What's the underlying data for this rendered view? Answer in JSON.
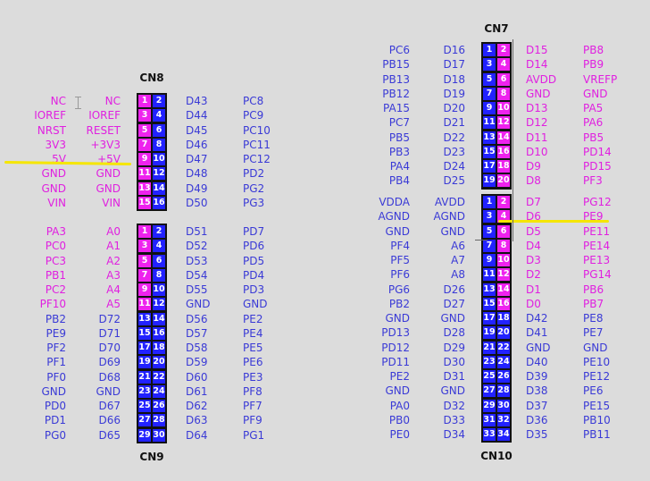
{
  "colors": {
    "magenta": "#e020e0",
    "blue": "#3a3ad6",
    "pin_magenta": "#ee22ee",
    "pin_blue": "#2222ff",
    "highlight": "#f5e600",
    "background": "#dcdcdc"
  },
  "connectors": [
    {
      "id": "cn8",
      "title": "CN8",
      "title_pos": "top",
      "rows": [
        [
          "NC",
          "NC",
          1,
          2,
          "D43",
          "PC8",
          "m",
          "b",
          "m",
          "b"
        ],
        [
          "IOREF",
          "IOREF",
          3,
          4,
          "D44",
          "PC9",
          "m",
          "b",
          "m",
          "b"
        ],
        [
          "NRST",
          "RESET",
          5,
          6,
          "D45",
          "PC10",
          "m",
          "b",
          "m",
          "b"
        ],
        [
          "3V3",
          "+3V3",
          7,
          8,
          "D46",
          "PC11",
          "m",
          "b",
          "m",
          "b"
        ],
        [
          "5V",
          "+5V",
          9,
          10,
          "D47",
          "PC12",
          "m",
          "b",
          "m",
          "b"
        ],
        [
          "GND",
          "GND",
          11,
          12,
          "D48",
          "PD2",
          "m",
          "b",
          "m",
          "b"
        ],
        [
          "GND",
          "GND",
          13,
          14,
          "D49",
          "PG2",
          "m",
          "b",
          "m",
          "b"
        ],
        [
          "VIN",
          "VIN",
          15,
          16,
          "D50",
          "PG3",
          "m",
          "b",
          "m",
          "b"
        ]
      ]
    },
    {
      "id": "cn9",
      "title": "CN9",
      "title_pos": "bottom",
      "rows": [
        [
          "PA3",
          "A0",
          1,
          2,
          "D51",
          "PD7",
          "m",
          "b",
          "m",
          "b"
        ],
        [
          "PC0",
          "A1",
          3,
          4,
          "D52",
          "PD6",
          "m",
          "b",
          "m",
          "b"
        ],
        [
          "PC3",
          "A2",
          5,
          6,
          "D53",
          "PD5",
          "m",
          "b",
          "m",
          "b"
        ],
        [
          "PB1",
          "A3",
          7,
          8,
          "D54",
          "PD4",
          "m",
          "b",
          "m",
          "b"
        ],
        [
          "PC2",
          "A4",
          9,
          10,
          "D55",
          "PD3",
          "m",
          "b",
          "m",
          "b"
        ],
        [
          "PF10",
          "A5",
          11,
          12,
          "GND",
          "GND",
          "m",
          "b",
          "m",
          "b"
        ],
        [
          "PB2",
          "D72",
          13,
          14,
          "D56",
          "PE2",
          "b",
          "b",
          "b",
          "b"
        ],
        [
          "PE9",
          "D71",
          15,
          16,
          "D57",
          "PE4",
          "b",
          "b",
          "b",
          "b"
        ],
        [
          "PF2",
          "D70",
          17,
          18,
          "D58",
          "PE5",
          "b",
          "b",
          "b",
          "b"
        ],
        [
          "PF1",
          "D69",
          19,
          20,
          "D59",
          "PE6",
          "b",
          "b",
          "b",
          "b"
        ],
        [
          "PF0",
          "D68",
          21,
          22,
          "D60",
          "PE3",
          "b",
          "b",
          "b",
          "b"
        ],
        [
          "GND",
          "GND",
          23,
          24,
          "D61",
          "PF8",
          "b",
          "b",
          "b",
          "b"
        ],
        [
          "PD0",
          "D67",
          25,
          26,
          "D62",
          "PF7",
          "b",
          "b",
          "b",
          "b"
        ],
        [
          "PD1",
          "D66",
          27,
          28,
          "D63",
          "PF9",
          "b",
          "b",
          "b",
          "b"
        ],
        [
          "PG0",
          "D65",
          29,
          30,
          "D64",
          "PG1",
          "b",
          "b",
          "b",
          "b"
        ]
      ]
    },
    {
      "id": "cn7",
      "title": "CN7",
      "title_pos": "top",
      "rows": [
        [
          "PC6",
          "D16",
          1,
          2,
          "D15",
          "PB8",
          "b",
          "m",
          "b",
          "m"
        ],
        [
          "PB15",
          "D17",
          3,
          4,
          "D14",
          "PB9",
          "b",
          "m",
          "b",
          "m"
        ],
        [
          "PB13",
          "D18",
          5,
          6,
          "AVDD",
          "VREFP",
          "b",
          "m",
          "b",
          "m"
        ],
        [
          "PB12",
          "D19",
          7,
          8,
          "GND",
          "GND",
          "b",
          "m",
          "b",
          "m"
        ],
        [
          "PA15",
          "D20",
          9,
          10,
          "D13",
          "PA5",
          "b",
          "m",
          "b",
          "m"
        ],
        [
          "PC7",
          "D21",
          11,
          12,
          "D12",
          "PA6",
          "b",
          "m",
          "b",
          "m"
        ],
        [
          "PB5",
          "D22",
          13,
          14,
          "D11",
          "PB5",
          "b",
          "m",
          "b",
          "m"
        ],
        [
          "PB3",
          "D23",
          15,
          16,
          "D10",
          "PD14",
          "b",
          "m",
          "b",
          "m"
        ],
        [
          "PA4",
          "D24",
          17,
          18,
          "D9",
          "PD15",
          "b",
          "m",
          "b",
          "m"
        ],
        [
          "PB4",
          "D25",
          19,
          20,
          "D8",
          "PF3",
          "b",
          "m",
          "b",
          "m"
        ]
      ]
    },
    {
      "id": "cn10",
      "title": "CN10",
      "title_pos": "bottom",
      "rows": [
        [
          "VDDA",
          "AVDD",
          1,
          2,
          "D7",
          "PG12",
          "b",
          "m",
          "b",
          "m"
        ],
        [
          "AGND",
          "AGND",
          3,
          4,
          "D6",
          "PE9",
          "b",
          "m",
          "b",
          "m"
        ],
        [
          "GND",
          "GND",
          5,
          6,
          "D5",
          "PE11",
          "b",
          "m",
          "b",
          "m"
        ],
        [
          "PF4",
          "A6",
          7,
          8,
          "D4",
          "PE14",
          "b",
          "m",
          "b",
          "m"
        ],
        [
          "PF5",
          "A7",
          9,
          10,
          "D3",
          "PE13",
          "b",
          "m",
          "b",
          "m"
        ],
        [
          "PF6",
          "A8",
          11,
          12,
          "D2",
          "PG14",
          "b",
          "m",
          "b",
          "m"
        ],
        [
          "PG6",
          "D26",
          13,
          14,
          "D1",
          "PB6",
          "b",
          "m",
          "b",
          "m"
        ],
        [
          "PB2",
          "D27",
          15,
          16,
          "D0",
          "PB7",
          "b",
          "m",
          "b",
          "m"
        ],
        [
          "GND",
          "GND",
          17,
          18,
          "D42",
          "PE8",
          "b",
          "b",
          "b",
          "b"
        ],
        [
          "PD13",
          "D28",
          19,
          20,
          "D41",
          "PE7",
          "b",
          "b",
          "b",
          "b"
        ],
        [
          "PD12",
          "D29",
          21,
          22,
          "GND",
          "GND",
          "b",
          "b",
          "b",
          "b"
        ],
        [
          "PD11",
          "D30",
          23,
          24,
          "D40",
          "PE10",
          "b",
          "b",
          "b",
          "b"
        ],
        [
          "PE2",
          "D31",
          25,
          26,
          "D39",
          "PE12",
          "b",
          "b",
          "b",
          "b"
        ],
        [
          "GND",
          "GND",
          27,
          28,
          "D38",
          "PE6",
          "b",
          "b",
          "b",
          "b"
        ],
        [
          "PA0",
          "D32",
          29,
          30,
          "D37",
          "PE15",
          "b",
          "b",
          "b",
          "b"
        ],
        [
          "PB0",
          "D33",
          31,
          32,
          "D36",
          "PB10",
          "b",
          "b",
          "b",
          "b"
        ],
        [
          "PE0",
          "D34",
          33,
          34,
          "D35",
          "PB11",
          "b",
          "b",
          "b",
          "b"
        ]
      ]
    }
  ]
}
